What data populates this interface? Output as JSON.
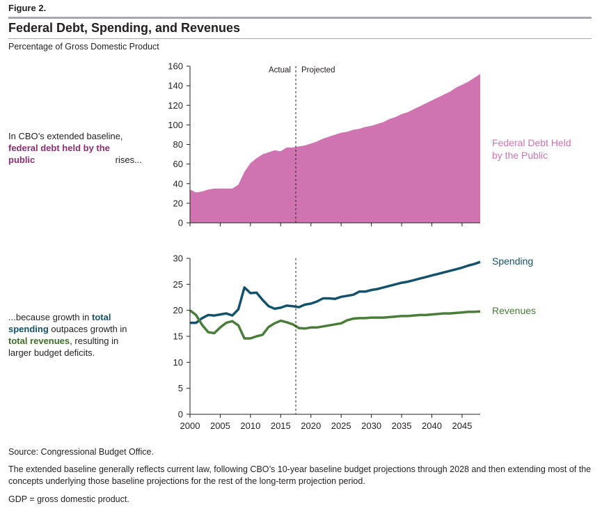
{
  "figure_label": "Figure 2.",
  "title": "Federal Debt, Spending, and Revenues",
  "subtitle": "Percentage of Gross Domestic Product",
  "annotations": {
    "debt": {
      "pre": "In CBO’s extended baseline,",
      "strong": "federal debt held by the public",
      "post": "rises..."
    },
    "budget": {
      "pre": "...because growth in",
      "strong_spending": "total spending",
      "mid": "outpaces growth in",
      "strong_revenues": "total revenues",
      "post": ", resulting in larger budget deficits."
    }
  },
  "divider_labels": {
    "actual": "Actual",
    "projected": "Projected"
  },
  "notes": {
    "source": "Source: Congressional Budget Office.",
    "description": "The extended baseline generally reflects current law, following CBO’s 10-year baseline budget projections through 2028 and then extending most of the concepts underlying those baseline projections for the rest of the long-term projection period.",
    "gdp": "GDP = gross domestic product."
  },
  "colors": {
    "debt": "#d074b1",
    "debt_annotation": "#8b2f73",
    "spending": "#14526b",
    "revenues": "#4a7d39",
    "rule": "#a7a9ac"
  },
  "chart_data": [
    {
      "type": "area",
      "series": [
        {
          "name": "Federal Debt Held by the Public",
          "x": [
            2000,
            2001,
            2002,
            2003,
            2004,
            2005,
            2006,
            2007,
            2008,
            2009,
            2010,
            2011,
            2012,
            2013,
            2014,
            2015,
            2016,
            2017,
            2018,
            2019,
            2020,
            2021,
            2022,
            2023,
            2024,
            2025,
            2026,
            2027,
            2028,
            2029,
            2030,
            2031,
            2032,
            2033,
            2034,
            2035,
            2036,
            2037,
            2038,
            2039,
            2040,
            2041,
            2042,
            2043,
            2044,
            2045,
            2046,
            2047,
            2048
          ],
          "values": [
            34,
            31,
            32,
            34,
            35,
            35,
            35,
            35,
            39,
            52,
            61,
            66,
            70,
            72,
            74,
            73,
            77,
            77,
            78,
            79,
            81,
            83,
            86,
            88,
            90,
            92,
            93,
            95,
            96,
            98,
            99,
            101,
            103,
            106,
            108,
            111,
            113,
            116,
            119,
            122,
            125,
            128,
            131,
            134,
            138,
            141,
            144,
            148,
            152
          ]
        }
      ],
      "ylim": [
        0,
        160
      ],
      "y_ticks": [
        0,
        20,
        40,
        60,
        80,
        100,
        120,
        140,
        160
      ],
      "xlim": [
        2000,
        2048
      ],
      "divider_x": 2017.5
    },
    {
      "type": "line",
      "series": [
        {
          "name": "Spending",
          "x": [
            2000,
            2001,
            2002,
            2003,
            2004,
            2005,
            2006,
            2007,
            2008,
            2009,
            2010,
            2011,
            2012,
            2013,
            2014,
            2015,
            2016,
            2017,
            2018,
            2019,
            2020,
            2021,
            2022,
            2023,
            2024,
            2025,
            2026,
            2027,
            2028,
            2029,
            2030,
            2031,
            2032,
            2033,
            2034,
            2035,
            2036,
            2037,
            2038,
            2039,
            2040,
            2041,
            2042,
            2043,
            2044,
            2045,
            2046,
            2047,
            2048
          ],
          "values": [
            17.6,
            17.6,
            18.5,
            19.1,
            19.0,
            19.2,
            19.4,
            19.0,
            20.2,
            24.4,
            23.3,
            23.4,
            22.0,
            20.8,
            20.3,
            20.5,
            20.9,
            20.8,
            20.6,
            21.1,
            21.3,
            21.7,
            22.3,
            22.3,
            22.2,
            22.6,
            22.8,
            23.0,
            23.6,
            23.6,
            23.9,
            24.1,
            24.4,
            24.7,
            25.0,
            25.3,
            25.5,
            25.8,
            26.1,
            26.4,
            26.7,
            27.0,
            27.3,
            27.6,
            27.9,
            28.2,
            28.6,
            28.9,
            29.3
          ]
        },
        {
          "name": "Revenues",
          "x": [
            2000,
            2001,
            2002,
            2003,
            2004,
            2005,
            2006,
            2007,
            2008,
            2009,
            2010,
            2011,
            2012,
            2013,
            2014,
            2015,
            2016,
            2017,
            2018,
            2019,
            2020,
            2021,
            2022,
            2023,
            2024,
            2025,
            2026,
            2027,
            2028,
            2029,
            2030,
            2031,
            2032,
            2033,
            2034,
            2035,
            2036,
            2037,
            2038,
            2039,
            2040,
            2041,
            2042,
            2043,
            2044,
            2045,
            2046,
            2047,
            2048
          ],
          "values": [
            20.0,
            19.1,
            17.2,
            15.8,
            15.6,
            16.7,
            17.6,
            17.9,
            17.1,
            14.6,
            14.6,
            15.0,
            15.3,
            16.8,
            17.5,
            18.0,
            17.7,
            17.3,
            16.6,
            16.5,
            16.7,
            16.7,
            16.9,
            17.1,
            17.3,
            17.5,
            18.1,
            18.4,
            18.5,
            18.5,
            18.6,
            18.6,
            18.6,
            18.7,
            18.8,
            18.9,
            18.9,
            19.0,
            19.1,
            19.1,
            19.2,
            19.3,
            19.4,
            19.4,
            19.5,
            19.6,
            19.7,
            19.7,
            19.8
          ]
        }
      ],
      "ylim": [
        0,
        30
      ],
      "y_ticks": [
        0,
        5,
        10,
        15,
        20,
        25,
        30
      ],
      "xlim": [
        2000,
        2048
      ],
      "x_ticks": [
        2000,
        2005,
        2010,
        2015,
        2020,
        2025,
        2030,
        2035,
        2040,
        2045
      ],
      "divider_x": 2017.5
    }
  ]
}
